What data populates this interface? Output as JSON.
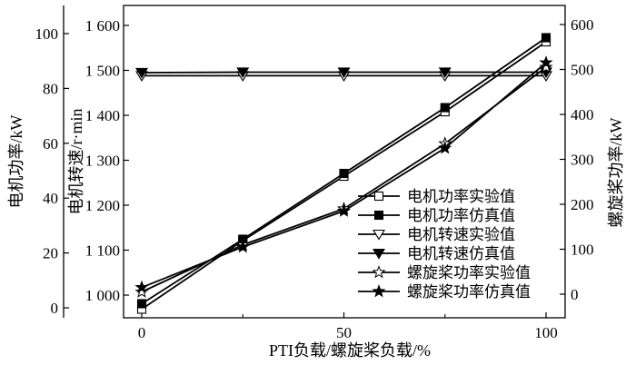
{
  "chart_data": {
    "type": "line",
    "xlabel": "PTI负载/螺旋桨负载/%",
    "x_ticks": [
      "0",
      "50",
      "100"
    ],
    "xlim": [
      0,
      100
    ],
    "left_outer_axis": {
      "label": "电机功率/kW",
      "ylim": [
        0,
        100
      ],
      "ticks": [
        "0",
        "20",
        "40",
        "60",
        "80",
        "100"
      ]
    },
    "left_inner_axis": {
      "label": "电机转速/r·min",
      "ylim": [
        1000,
        1600
      ],
      "ticks": [
        "1 000",
        "1 100",
        "1 200",
        "1 300",
        "1 400",
        "1 500",
        "1 600"
      ]
    },
    "right_axis": {
      "label": "螺旋桨功率/kW",
      "ylim": [
        0,
        600
      ],
      "ticks": [
        "0",
        "100",
        "200",
        "300",
        "400",
        "500",
        "600"
      ]
    },
    "x": [
      0,
      25,
      50,
      75,
      100
    ],
    "series": [
      {
        "name": "电机功率实验值",
        "axis": "left_outer",
        "marker": "square-open",
        "values": [
          -0.5,
          24.5,
          48,
          71.5,
          97
        ]
      },
      {
        "name": "电机功率仿真值",
        "axis": "left_outer",
        "marker": "square-filled",
        "values": [
          1.5,
          25,
          49,
          73,
          98.5
        ]
      },
      {
        "name": "电机转速实验值",
        "axis": "left_inner",
        "marker": "triangle-down-open",
        "values": [
          1488,
          1488,
          1488,
          1488,
          1488
        ]
      },
      {
        "name": "电机转速仿真值",
        "axis": "left_inner",
        "marker": "triangle-down-filled",
        "values": [
          1495,
          1496,
          1496,
          1496,
          1496
        ]
      },
      {
        "name": "螺旋桨功率实验值",
        "axis": "right",
        "marker": "star-open",
        "values": [
          5,
          110,
          190,
          335,
          505
        ]
      },
      {
        "name": "螺旋桨功率仿真值",
        "axis": "right",
        "marker": "star-filled",
        "values": [
          15,
          105,
          185,
          325,
          515
        ]
      }
    ],
    "legend_position": "lower-right",
    "grid": false
  }
}
